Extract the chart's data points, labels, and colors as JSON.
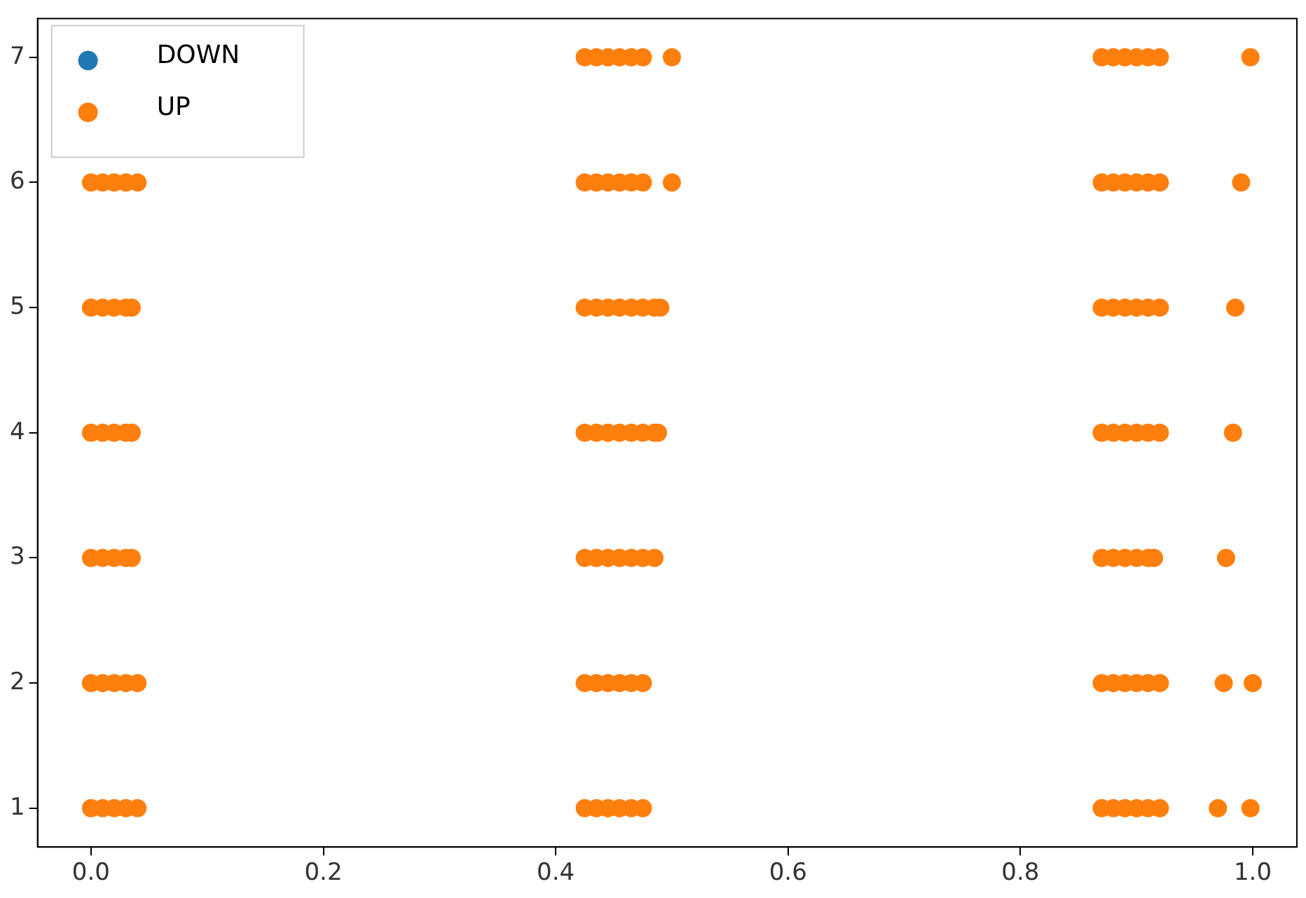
{
  "chart_data": {
    "type": "scatter",
    "marker": "circle",
    "legend": "top left",
    "grid": false,
    "xlim": [
      -0.046,
      1.038
    ],
    "ylim": [
      0.69,
      7.31
    ],
    "xticks": [
      {
        "value": 0,
        "label": "0.0"
      },
      {
        "value": 0.2,
        "label": "0.2"
      },
      {
        "value": 0.4,
        "label": "0.4"
      },
      {
        "value": 0.6,
        "label": "0.6"
      },
      {
        "value": 0.8,
        "label": "0.8"
      },
      {
        "value": 1,
        "label": "1.0"
      }
    ],
    "yticks": [
      1,
      2,
      3,
      4,
      5,
      6,
      7
    ],
    "series": [
      {
        "name": "DOWN",
        "color": "#1f77b4"
      },
      {
        "name": "UP",
        "color": "#ff7f0e",
        "x": [
          0.425,
          0.435,
          0.445,
          0.455,
          0.465,
          0.475,
          0.5,
          0.87,
          0.88,
          0.89,
          0.9,
          0.91,
          0.92,
          0.998,
          0,
          0.01,
          0.02,
          0.03,
          0.04,
          0.425,
          0.435,
          0.445,
          0.455,
          0.465,
          0.475,
          0.5,
          0.87,
          0.88,
          0.89,
          0.9,
          0.91,
          0.92,
          0.99,
          0,
          0.01,
          0.02,
          0.03,
          0.035,
          0.425,
          0.435,
          0.445,
          0.455,
          0.465,
          0.475,
          0.485,
          0.49,
          0.87,
          0.88,
          0.89,
          0.9,
          0.91,
          0.92,
          0.985,
          0,
          0.01,
          0.02,
          0.03,
          0.035,
          0.425,
          0.435,
          0.445,
          0.455,
          0.465,
          0.475,
          0.485,
          0.488,
          0.87,
          0.88,
          0.89,
          0.9,
          0.91,
          0.92,
          0.983,
          0,
          0.01,
          0.02,
          0.03,
          0.035,
          0.425,
          0.435,
          0.445,
          0.455,
          0.465,
          0.475,
          0.485,
          0.87,
          0.88,
          0.89,
          0.9,
          0.91,
          0.915,
          0.977,
          0,
          0.01,
          0.02,
          0.03,
          0.04,
          0.425,
          0.435,
          0.445,
          0.455,
          0.465,
          0.475,
          0.87,
          0.88,
          0.89,
          0.9,
          0.91,
          0.92,
          0.975,
          1.0,
          0,
          0.01,
          0.02,
          0.03,
          0.04,
          0.425,
          0.435,
          0.445,
          0.455,
          0.465,
          0.475,
          0.87,
          0.88,
          0.89,
          0.9,
          0.91,
          0.92,
          0.97,
          0.998
        ],
        "values": [
          7,
          7,
          7,
          7,
          7,
          7,
          7,
          7,
          7,
          7,
          7,
          7,
          7,
          7,
          6,
          6,
          6,
          6,
          6,
          6,
          6,
          6,
          6,
          6,
          6,
          6,
          6,
          6,
          6,
          6,
          6,
          6,
          6,
          5,
          5,
          5,
          5,
          5,
          5,
          5,
          5,
          5,
          5,
          5,
          5,
          5,
          5,
          5,
          5,
          5,
          5,
          5,
          5,
          4,
          4,
          4,
          4,
          4,
          4,
          4,
          4,
          4,
          4,
          4,
          4,
          4,
          4,
          4,
          4,
          4,
          4,
          4,
          4,
          3,
          3,
          3,
          3,
          3,
          3,
          3,
          3,
          3,
          3,
          3,
          3,
          3,
          3,
          3,
          3,
          3,
          3,
          3,
          2,
          2,
          2,
          2,
          2,
          2,
          2,
          2,
          2,
          2,
          2,
          2,
          2,
          2,
          2,
          2,
          2,
          2,
          2,
          1,
          1,
          1,
          1,
          1,
          1,
          1,
          1,
          1,
          1,
          1,
          1,
          1,
          1,
          1,
          1,
          1,
          1,
          1
        ]
      }
    ]
  }
}
